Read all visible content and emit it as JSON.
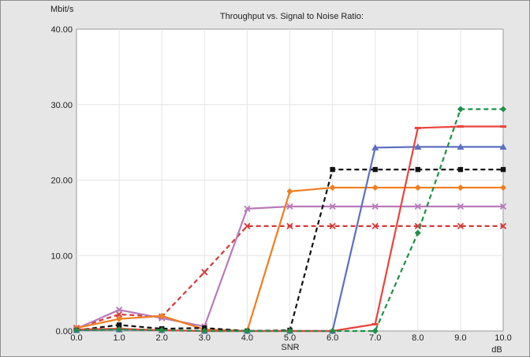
{
  "chart_data": {
    "type": "line",
    "title": "Throughput vs. Signal to Noise Ratio:",
    "xlabel": "SNR",
    "x_unit": "dB",
    "y_unit": "Mbit/s",
    "xlim": [
      0,
      10
    ],
    "ylim": [
      0,
      40
    ],
    "x": [
      0,
      1,
      2,
      3,
      4,
      5,
      6,
      7,
      8,
      9,
      10
    ],
    "x_tick_labels": [
      "0.0",
      "1.0",
      "2.0",
      "3.0",
      "4.0",
      "5.0",
      "6.0",
      "7.0",
      "8.0",
      "9.0",
      "10.0"
    ],
    "y_ticks": [
      0,
      10,
      20,
      30,
      40
    ],
    "y_tick_labels": [
      "0.00",
      "10.00",
      "20.00",
      "30.00",
      "40.00"
    ],
    "grid": true,
    "series": [
      {
        "color": "#d23a3a",
        "dash": "6,4",
        "marker": "x",
        "values": [
          0.4,
          2.2,
          1.9,
          7.8,
          13.9,
          13.9,
          13.9,
          13.9,
          13.9,
          13.9,
          13.9
        ]
      },
      {
        "color": "#b87ab8",
        "dash": "",
        "marker": "x",
        "values": [
          0.3,
          2.8,
          1.7,
          0.6,
          16.2,
          16.5,
          16.5,
          16.5,
          16.5,
          16.5,
          16.5
        ]
      },
      {
        "color": "#f07d1e",
        "dash": "",
        "marker": "diamond",
        "values": [
          0.4,
          1.6,
          2.0,
          0.2,
          0.0,
          18.5,
          19.0,
          19.0,
          19.0,
          19.0,
          19.0
        ]
      },
      {
        "color": "#111111",
        "dash": "6,4",
        "marker": "square",
        "values": [
          0.1,
          0.8,
          0.3,
          0.4,
          0.0,
          0.1,
          21.4,
          21.4,
          21.4,
          21.4,
          21.4
        ]
      },
      {
        "color": "#5c6fc0",
        "dash": "",
        "marker": "triangle",
        "values": [
          0.1,
          0.2,
          0.1,
          0.0,
          0.0,
          0.0,
          0.0,
          24.3,
          24.4,
          24.4,
          24.4
        ]
      },
      {
        "color": "#e8443c",
        "dash": "",
        "marker": "dash",
        "values": [
          0.2,
          0.3,
          0.1,
          0.0,
          0.0,
          0.0,
          0.0,
          0.9,
          26.9,
          27.1,
          27.1
        ]
      },
      {
        "color": "#1f8f45",
        "dash": "6,4",
        "marker": "diamond",
        "values": [
          0.1,
          0.2,
          0.1,
          0.0,
          0.0,
          0.0,
          0.0,
          0.0,
          13.0,
          29.4,
          29.4
        ]
      }
    ]
  }
}
